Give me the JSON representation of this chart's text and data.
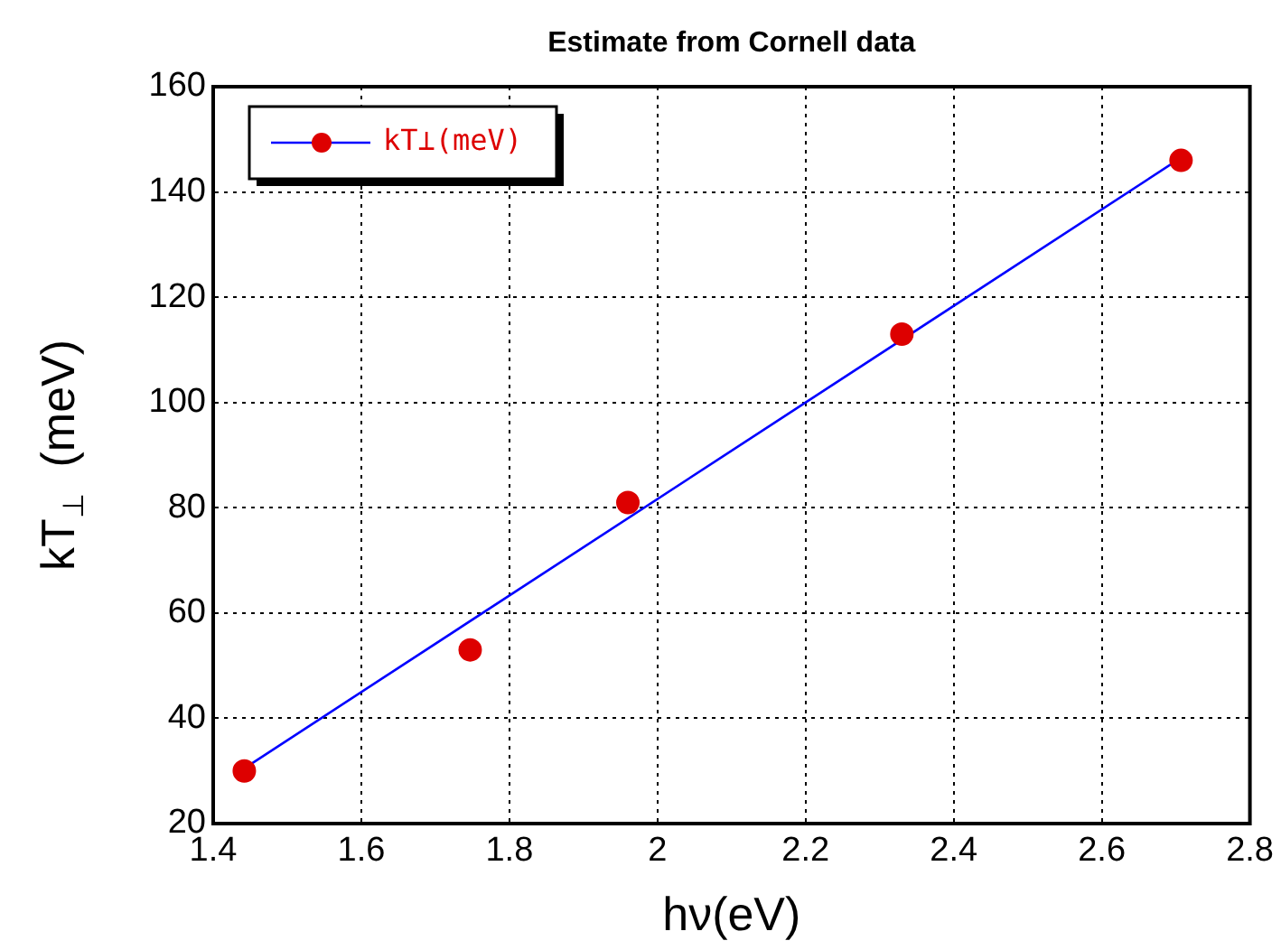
{
  "chart_data": {
    "type": "scatter",
    "title": "Estimate from Cornell data",
    "xlabel": "hν(eV)",
    "ylabel": "kT$_{⊥}$  (meV)",
    "xlim": [
      1.4,
      2.8
    ],
    "xticks": [
      1.4,
      1.6,
      1.8,
      2,
      2.2,
      2.4,
      2.6,
      2.8
    ],
    "ylim": [
      20,
      160
    ],
    "yticks": [
      20,
      40,
      60,
      80,
      100,
      120,
      140,
      160
    ],
    "grid": true,
    "legend": "top left",
    "marker": "circle",
    "series": [
      {
        "name": "kT⊥(meV)",
        "color": "#dd0000",
        "x": [
          1.442,
          1.747,
          1.96,
          2.33,
          2.707
        ],
        "values": [
          30,
          53,
          81,
          113,
          146
        ]
      },
      {
        "type": "line",
        "color": "#0000ff",
        "line_style": "solid",
        "marker": "none",
        "x": [
          1.442,
          2.707
        ],
        "values": [
          30.5,
          146.5
        ]
      }
    ]
  }
}
